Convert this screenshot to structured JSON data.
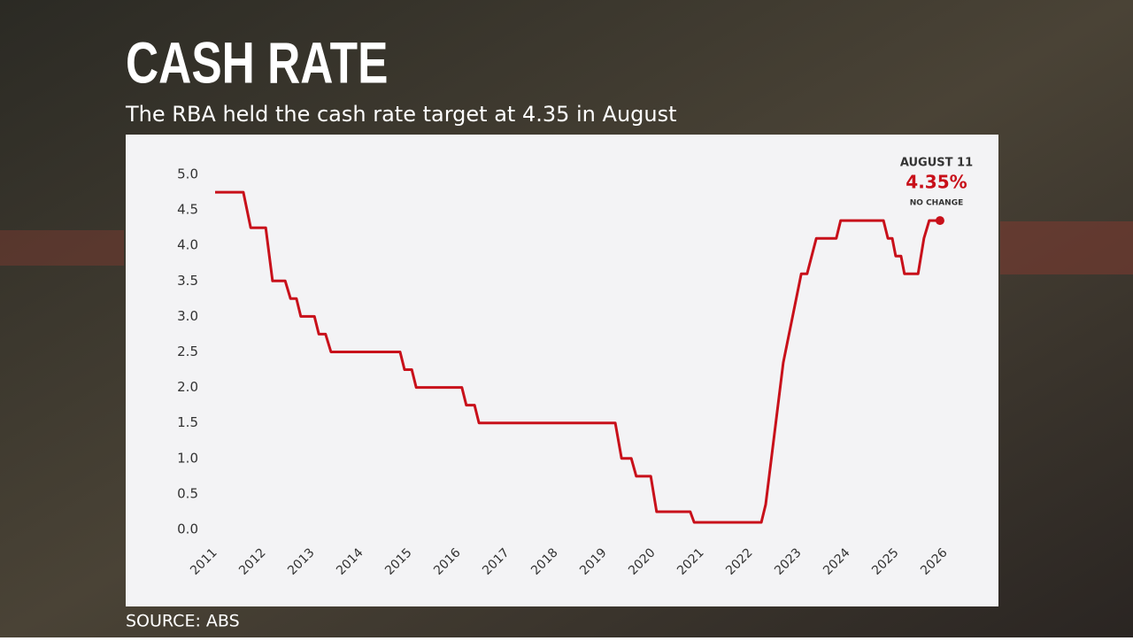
{
  "chart_data": {
    "type": "line",
    "title": "CASH RATE",
    "subtitle": "The RBA held the cash rate target at 4.35 in August",
    "source": "SOURCE: ABS",
    "annotation": {
      "date": "AUGUST 11",
      "value": "4.35%",
      "note": "NO CHANGE"
    },
    "x": [
      2011.0,
      2011.58,
      2011.73,
      2012.04,
      2012.18,
      2012.44,
      2012.55,
      2012.67,
      2012.76,
      2013.04,
      2013.13,
      2013.27,
      2013.38,
      2014.8,
      2014.89,
      2015.04,
      2015.13,
      2016.07,
      2016.16,
      2016.33,
      2016.42,
      2019.22,
      2019.35,
      2019.55,
      2019.65,
      2019.95,
      2020.07,
      2020.76,
      2020.84,
      2022.22,
      2022.31,
      2022.67,
      2023.04,
      2023.16,
      2023.35,
      2023.76,
      2023.85,
      2024.73,
      2024.82,
      2024.91,
      2024.98,
      2025.09,
      2025.16,
      2025.44,
      2025.56,
      2025.67,
      2025.89
    ],
    "series": [
      {
        "name": "Cash rate",
        "color": "#c8101a",
        "values": [
          4.75,
          4.75,
          4.25,
          4.25,
          3.5,
          3.5,
          3.25,
          3.25,
          3.0,
          3.0,
          2.75,
          2.75,
          2.5,
          2.5,
          2.25,
          2.25,
          2.0,
          2.0,
          1.75,
          1.75,
          1.5,
          1.5,
          1.0,
          1.0,
          0.75,
          0.75,
          0.25,
          0.25,
          0.1,
          0.1,
          0.35,
          2.35,
          3.6,
          3.6,
          4.1,
          4.1,
          4.35,
          4.35,
          4.1,
          4.1,
          3.85,
          3.85,
          3.6,
          3.6,
          4.1,
          4.35,
          4.35
        ]
      }
    ],
    "xlim": [
      2011,
      2026.4
    ],
    "xticks": [
      2011,
      2012,
      2013,
      2014,
      2015,
      2016,
      2017,
      2018,
      2019,
      2020,
      2021,
      2022,
      2023,
      2024,
      2025,
      2026
    ],
    "ylim": [
      0,
      5
    ],
    "yticks": [
      {
        "value": 0,
        "label": "0.0"
      },
      0.5,
      {
        "value": 1,
        "label": "1.0"
      },
      1.5,
      {
        "value": 2,
        "label": "2.0"
      },
      2.5,
      {
        "value": 3,
        "label": "3.0"
      },
      3.5,
      {
        "value": 4,
        "label": "4.0"
      },
      4.5,
      {
        "value": 5,
        "label": "5.0"
      }
    ],
    "grid": false
  }
}
